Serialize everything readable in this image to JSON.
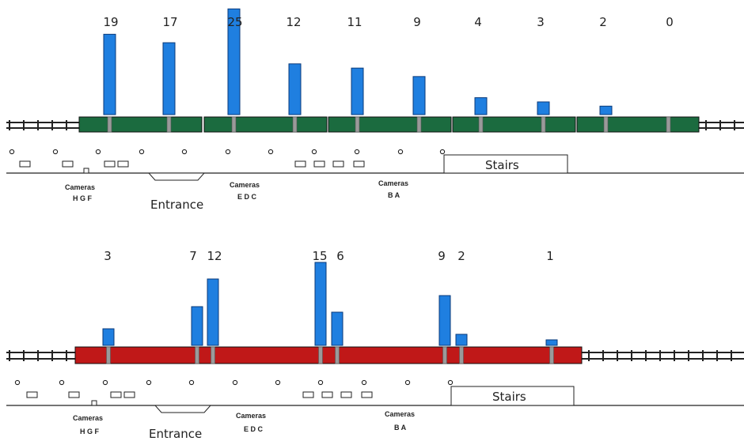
{
  "colors": {
    "bar": "#1f7fe0",
    "bar_stroke": "#0a3a7a",
    "train_top": "#1b6b3f",
    "train_bottom": "#c01818",
    "door": "#9a9a9a",
    "track": "#222222"
  },
  "chart_data": [
    {
      "type": "bar",
      "title": "",
      "train": "green",
      "values": [
        19,
        17,
        25,
        12,
        11,
        9,
        4,
        3,
        2,
        0
      ],
      "labels": [
        "19",
        "17",
        "25",
        "12",
        "11",
        "9",
        "4",
        "3",
        "2",
        "0"
      ]
    },
    {
      "type": "bar",
      "title": "",
      "train": "red",
      "values": [
        3,
        7,
        12,
        15,
        6,
        9,
        2,
        1
      ],
      "labels": [
        "3",
        "7",
        "12",
        "15",
        "6",
        "9",
        "2",
        "1"
      ]
    }
  ],
  "platform": {
    "stairs_label": "Stairs",
    "entrance_label": "Entrance",
    "cameras_label": "Cameras",
    "camera_groups": [
      "H G F",
      "E D C",
      "B A"
    ]
  }
}
